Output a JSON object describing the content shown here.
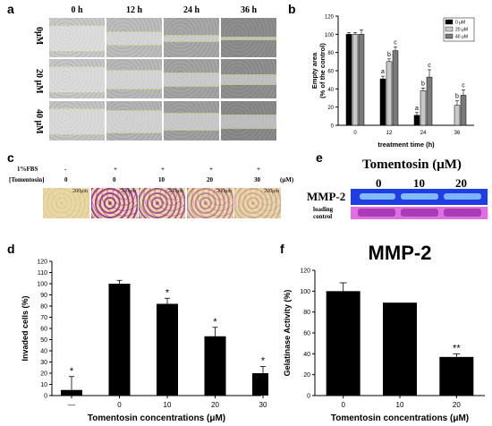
{
  "panels": {
    "a": "a",
    "b": "b",
    "c": "c",
    "d": "d",
    "e": "e",
    "f": "f"
  },
  "panel_a": {
    "time_headers": [
      "0 h",
      "12 h",
      "24 h",
      "36 h"
    ],
    "conc_labels": [
      "0μM",
      "20 μM",
      "40 μM"
    ]
  },
  "panel_c": {
    "fbs_label": "1%FBS",
    "tomentosin_label": "[Tomentosin]",
    "unit": "(μM)",
    "fbs_values": [
      "-",
      "+",
      "+",
      "+",
      "+"
    ],
    "tom_values": [
      "0",
      "0",
      "10",
      "20",
      "30"
    ],
    "scale_bar": "200μm"
  },
  "panel_e": {
    "title": "Tomentosin (μM)",
    "concentrations": [
      "0",
      "10",
      "20"
    ],
    "band_label": "MMP-2",
    "loading_label_1": "loading",
    "loading_label_2": "control",
    "band_color": "#1f3de0",
    "loading_color": "#e070e0"
  },
  "chart_data": [
    {
      "id": "b",
      "type": "bar",
      "categories": [
        "0",
        "12",
        "24",
        "36"
      ],
      "series": [
        {
          "name": "0 μM",
          "values": [
            100,
            51,
            11,
            null
          ],
          "errors": [
            2,
            3,
            3,
            0
          ],
          "color": "#000000"
        },
        {
          "name": "20 μM",
          "values": [
            100,
            70,
            38,
            22
          ],
          "errors": [
            2,
            3,
            3,
            5
          ],
          "color": "#c8c8c8"
        },
        {
          "name": "40 μM",
          "values": [
            100,
            82,
            53,
            33
          ],
          "errors": [
            5,
            4,
            8,
            6
          ],
          "color": "#7a7a7a"
        }
      ],
      "sig_labels": [
        [
          "",
          "a",
          "a",
          ""
        ],
        [
          "",
          "b",
          "b",
          "b"
        ],
        [
          "",
          "c",
          "c",
          "c"
        ]
      ],
      "xlabel": "treatment time (h)",
      "ylabel_1": "Empty area",
      "ylabel_2": "(% of the control)",
      "ylim": [
        0,
        120
      ],
      "yticks": [
        "0",
        "20",
        "40",
        "60",
        "80",
        "100",
        "120"
      ],
      "legend": "top-right"
    },
    {
      "id": "d",
      "type": "bar",
      "categories": [
        "—",
        "0",
        "10",
        "20",
        "30"
      ],
      "values": [
        5,
        100,
        82,
        53,
        20
      ],
      "errors": [
        12,
        3,
        5,
        8,
        6
      ],
      "sig": [
        "*",
        "",
        "*",
        "*",
        "*"
      ],
      "xlabel": "Tomentosin concentrations (μM)",
      "ylabel": "Invaded cells (%)",
      "ylim": [
        0,
        120
      ],
      "yticks": [
        "0",
        "10",
        "20",
        "30",
        "40",
        "50",
        "60",
        "70",
        "80",
        "90",
        "100",
        "110",
        "120"
      ]
    },
    {
      "id": "f",
      "type": "bar",
      "title": "MMP-2",
      "categories": [
        "0",
        "10",
        "20"
      ],
      "values": [
        100,
        89,
        37
      ],
      "errors": [
        8,
        0,
        3
      ],
      "sig": [
        "",
        "",
        "**"
      ],
      "xlabel": "Tomentosin concentrations (μM)",
      "ylabel": "Gelatinase Activity (%)",
      "ylim": [
        0,
        120
      ],
      "yticks": [
        "0",
        "20",
        "40",
        "60",
        "80",
        "100",
        "120"
      ]
    }
  ]
}
